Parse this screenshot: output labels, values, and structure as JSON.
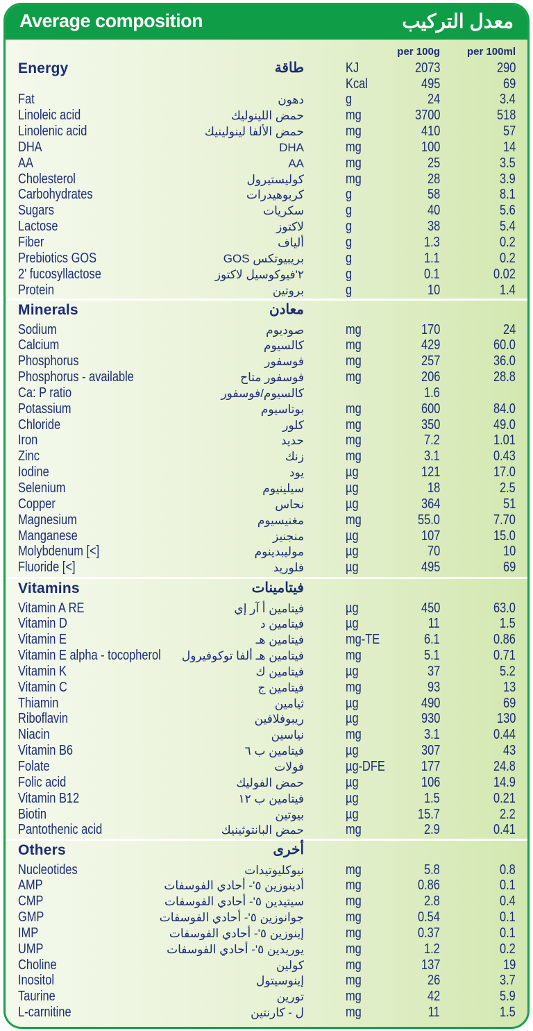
{
  "title": {
    "en": "Average composition",
    "ar": "معدل التركيب"
  },
  "columns": {
    "per_100g": "per 100g",
    "per_100ml": "per 100ml"
  },
  "colors": {
    "border": "#17a14a",
    "header": "#0f9d48",
    "text": "#1c2c72",
    "background_right": "#d2e8b0"
  },
  "sections": [
    {
      "name_en": "Energy",
      "name_ar": "طاقة",
      "head_values": [
        "KJ",
        "2073",
        "290"
      ],
      "rows": [
        [
          "",
          "",
          "Kcal",
          "495",
          "69"
        ],
        [
          "Fat",
          "دهون",
          "g",
          "24",
          "3.4"
        ],
        [
          "Linoleic acid",
          "حمض اللينوليك",
          "mg",
          "3700",
          "518"
        ],
        [
          "Linolenic acid",
          "حمض الألفا لينولينيك",
          "mg",
          "410",
          "57"
        ],
        [
          "DHA",
          "DHA",
          "mg",
          "100",
          "14"
        ],
        [
          "AA",
          "AA",
          "mg",
          "25",
          "3.5"
        ],
        [
          "Cholesterol",
          "كوليستيرول",
          "mg",
          "28",
          "3.9"
        ],
        [
          "Carbohydrates",
          "كربوهيدرات",
          "g",
          "58",
          "8.1"
        ],
        [
          "Sugars",
          "سكريات",
          "g",
          "40",
          "5.6"
        ],
        [
          "Lactose",
          "لاكتوز",
          "g",
          "38",
          "5.4"
        ],
        [
          "Fiber",
          "ألياف",
          "g",
          "1.3",
          "0.2"
        ],
        [
          "Prebiotics GOS",
          "بريبيوتكس GOS",
          "g",
          "1.1",
          "0.2"
        ],
        [
          "2' fucosyllactose",
          "٢'فيوكوسيل لاكتوز",
          "g",
          "0.1",
          "0.02"
        ],
        [
          "Protein",
          "بروتين",
          "g",
          "10",
          "1.4"
        ]
      ]
    },
    {
      "name_en": "Minerals",
      "name_ar": "معادن",
      "head_values": [
        "",
        "",
        ""
      ],
      "rows": [
        [
          "Sodium",
          "صوديوم",
          "mg",
          "170",
          "24"
        ],
        [
          "Calcium",
          "كالسيوم",
          "mg",
          "429",
          "60.0"
        ],
        [
          "Phosphorus",
          "فوسفور",
          "mg",
          "257",
          "36.0"
        ],
        [
          "Phosphorus - available",
          "فوسفور متاح",
          "mg",
          "206",
          "28.8"
        ],
        [
          "Ca: P ratio",
          "كالسيوم/فوسفور",
          "",
          "1.6",
          ""
        ],
        [
          "Potassium",
          "بوتاسيوم",
          "mg",
          "600",
          "84.0"
        ],
        [
          "Chloride",
          "كلور",
          "mg",
          "350",
          "49.0"
        ],
        [
          "Iron",
          "حديد",
          "mg",
          "7.2",
          "1.01"
        ],
        [
          "Zinc",
          "زنك",
          "mg",
          "3.1",
          "0.43"
        ],
        [
          "Iodine",
          "يود",
          "µg",
          "121",
          "17.0"
        ],
        [
          "Selenium",
          "سيلينيوم",
          "µg",
          "18",
          "2.5"
        ],
        [
          "Copper",
          "نحاس",
          "µg",
          "364",
          "51"
        ],
        [
          "Magnesium",
          "مغنيسيوم",
          "mg",
          "55.0",
          "7.70"
        ],
        [
          "Manganese",
          "منجنيز",
          "µg",
          "107",
          "15.0"
        ],
        [
          "Molybdenum [<]",
          "موليبدينوم",
          "µg",
          "70",
          "10"
        ],
        [
          "Fluoride [<]",
          "فلوريد",
          "µg",
          "495",
          "69"
        ]
      ]
    },
    {
      "name_en": "Vitamins",
      "name_ar": "فيتامينات",
      "head_values": [
        "",
        "",
        ""
      ],
      "rows": [
        [
          "Vitamin A RE",
          "فيتامين أ آر إي",
          "µg",
          "450",
          "63.0"
        ],
        [
          "Vitamin D",
          "فيتامين د",
          "µg",
          "11",
          "1.5"
        ],
        [
          "Vitamin E",
          "فيتامين هـ",
          "mg-TE",
          "6.1",
          "0.86"
        ],
        [
          "Vitamin E alpha - tocopherol",
          "فيتامين هـ ألفا توكوفيرول",
          "mg",
          "5.1",
          "0.71"
        ],
        [
          "Vitamin K",
          "فيتامين ك",
          "µg",
          "37",
          "5.2"
        ],
        [
          "Vitamin C",
          "فيتامين ج",
          "mg",
          "93",
          "13"
        ],
        [
          "Thiamin",
          "ثيامين",
          "µg",
          "490",
          "69"
        ],
        [
          "Riboflavin",
          "ريبوفلافين",
          "µg",
          "930",
          "130"
        ],
        [
          "Niacin",
          "نياسين",
          "mg",
          "3.1",
          "0.44"
        ],
        [
          "Vitamin B6",
          "فيتامين ب ٦",
          "µg",
          "307",
          "43"
        ],
        [
          "Folate",
          "فولات",
          "µg-DFE",
          "177",
          "24.8"
        ],
        [
          "Folic acid",
          "حمض الفوليك",
          "µg",
          "106",
          "14.9"
        ],
        [
          "Vitamin B12",
          "فيتامين ب ١٢",
          "µg",
          "1.5",
          "0.21"
        ],
        [
          "Biotin",
          "بيوتين",
          "µg",
          "15.7",
          "2.2"
        ],
        [
          "Pantothenic acid",
          "حمض البانتوثينيك",
          "mg",
          "2.9",
          "0.41"
        ]
      ]
    },
    {
      "name_en": "Others",
      "name_ar": "أخرى",
      "head_values": [
        "",
        "",
        ""
      ],
      "rows": [
        [
          "Nucleotides",
          "نيوكليوتيدات",
          "mg",
          "5.8",
          "0.8"
        ],
        [
          "AMP",
          "أدينوزين ٥'- أحادي الفوسفات",
          "mg",
          "0.86",
          "0.1"
        ],
        [
          "CMP",
          "سيتيدين ٥'- أحادي الفوسفات",
          "mg",
          "2.8",
          "0.4"
        ],
        [
          "GMP",
          "جوانوزين ٥'- أحادي الفوسفات",
          "mg",
          "0.54",
          "0.1"
        ],
        [
          "IMP",
          "إينوزين ٥'- أحادي الفوسفات",
          "mg",
          "0.37",
          "0.1"
        ],
        [
          "UMP",
          "يوريدين ٥'- أحادي الفوسفات",
          "mg",
          "1.2",
          "0.2"
        ],
        [
          "Choline",
          "كولين",
          "mg",
          "137",
          "19"
        ],
        [
          "Inositol",
          "إينوسيتول",
          "mg",
          "26",
          "3.7"
        ],
        [
          "Taurine",
          "تورين",
          "mg",
          "42",
          "5.9"
        ],
        [
          "L-carnitine",
          "ل - كارنتين",
          "mg",
          "11",
          "1.5"
        ]
      ]
    }
  ]
}
